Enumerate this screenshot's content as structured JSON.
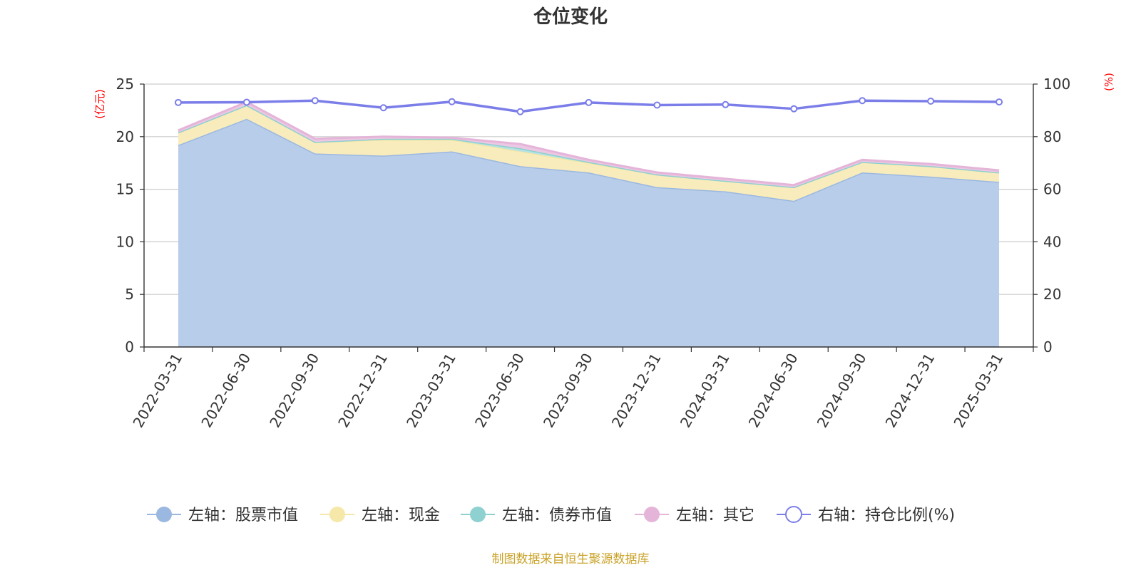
{
  "chart_data": {
    "type": "area",
    "title": "仓位变化",
    "categories": [
      "2022-03-31",
      "2022-06-30",
      "2022-09-30",
      "2022-12-31",
      "2023-03-31",
      "2023-06-30",
      "2023-09-30",
      "2023-12-31",
      "2024-03-31",
      "2024-06-30",
      "2024-09-30",
      "2024-12-31",
      "2025-03-31"
    ],
    "left_axis": {
      "unit": "(亿元)",
      "ylim": [
        0,
        25
      ],
      "ticks": [
        0,
        5,
        10,
        15,
        20,
        25
      ]
    },
    "right_axis": {
      "unit": "(%)",
      "ylim": [
        0,
        100
      ],
      "ticks": [
        0,
        20,
        40,
        60,
        80,
        100
      ]
    },
    "grid": true,
    "stacked": true,
    "series": [
      {
        "name": "左轴：股票市值",
        "axis": "left",
        "kind": "area",
        "color": "#9bb8e0",
        "fill": "#b8cdea",
        "values": [
          19.2,
          21.7,
          18.4,
          18.2,
          18.6,
          17.2,
          16.6,
          15.2,
          14.8,
          13.9,
          16.6,
          16.2,
          15.7
        ]
      },
      {
        "name": "左轴：现金",
        "axis": "left",
        "kind": "area",
        "color": "#f5e8a8",
        "fill": "#f9ecbc",
        "values": [
          1.2,
          1.3,
          1.1,
          1.5,
          1.1,
          1.4,
          0.9,
          1.2,
          1.0,
          1.3,
          1.0,
          1.0,
          0.9
        ]
      },
      {
        "name": "左轴：债券市值",
        "axis": "left",
        "kind": "area",
        "color": "#8fd0d0",
        "fill": "#b6e2e2",
        "values": [
          0.0,
          0.0,
          0.0,
          0.1,
          0.1,
          0.3,
          0.1,
          0.0,
          0.0,
          0.0,
          0.0,
          0.0,
          0.0
        ]
      },
      {
        "name": "左轴：其它",
        "axis": "left",
        "kind": "area",
        "color": "#e5b5d9",
        "fill": "#ecc8e3",
        "values": [
          0.2,
          0.3,
          0.3,
          0.2,
          0.1,
          0.4,
          0.2,
          0.2,
          0.2,
          0.2,
          0.2,
          0.2,
          0.2
        ]
      },
      {
        "name": "右轴：持仓比例(%)",
        "axis": "right",
        "kind": "line",
        "color": "#7b7ee8",
        "values": [
          93.0,
          93.1,
          93.7,
          91.0,
          93.3,
          89.5,
          93.0,
          92.0,
          92.2,
          90.6,
          93.7,
          93.5,
          93.2
        ]
      }
    ],
    "legend_position": "bottom",
    "source": "制图数据来自恒生聚源数据库"
  }
}
